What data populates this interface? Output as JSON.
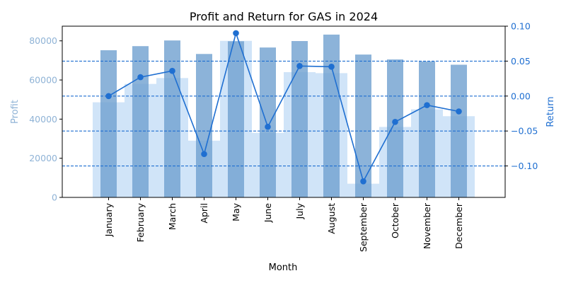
{
  "chart_data": {
    "type": "bar",
    "title": "Profit and Return for GAS in 2024",
    "xlabel": "Month",
    "ylabel_left": "Profit",
    "ylabel_right": "Return",
    "categories": [
      "January",
      "February",
      "March",
      "April",
      "May",
      "June",
      "July",
      "August",
      "September",
      "October",
      "November",
      "December"
    ],
    "ylim_left": [
      0,
      87500
    ],
    "ylim_right": [
      -0.145,
      0.1
    ],
    "yticks_left": [
      0,
      20000,
      40000,
      60000,
      80000
    ],
    "yticks_right": [
      0.1,
      0.05,
      0.0,
      -0.05,
      -0.1
    ],
    "ytick_labels_right": [
      "0.10",
      "0.05",
      "0.00",
      "−0.05",
      "−0.10"
    ],
    "grid_right_axis": true,
    "series": [
      {
        "kind": "bar",
        "axis": "left",
        "values": [
          75200,
          77300,
          80200,
          73300,
          79800,
          76600,
          79900,
          83200,
          73000,
          70500,
          69500,
          67800
        ]
      },
      {
        "kind": "area",
        "axis": "left",
        "values": [
          48600,
          58000,
          61000,
          29000,
          80000,
          33000,
          64000,
          63500,
          7000,
          36000,
          45000,
          41500
        ]
      },
      {
        "kind": "line",
        "axis": "right",
        "values": [
          0.0,
          0.027,
          0.036,
          -0.083,
          0.09,
          -0.044,
          0.043,
          0.042,
          -0.122,
          -0.037,
          -0.013,
          -0.022
        ]
      }
    ],
    "colors": {
      "bar": "#6fa0d0",
      "area": "#a9cdf2",
      "line": "#1f6fd1",
      "grid": "#1f6fd1",
      "left_axis": "#8fb3d6",
      "right_axis": "#1f6fd1"
    }
  }
}
